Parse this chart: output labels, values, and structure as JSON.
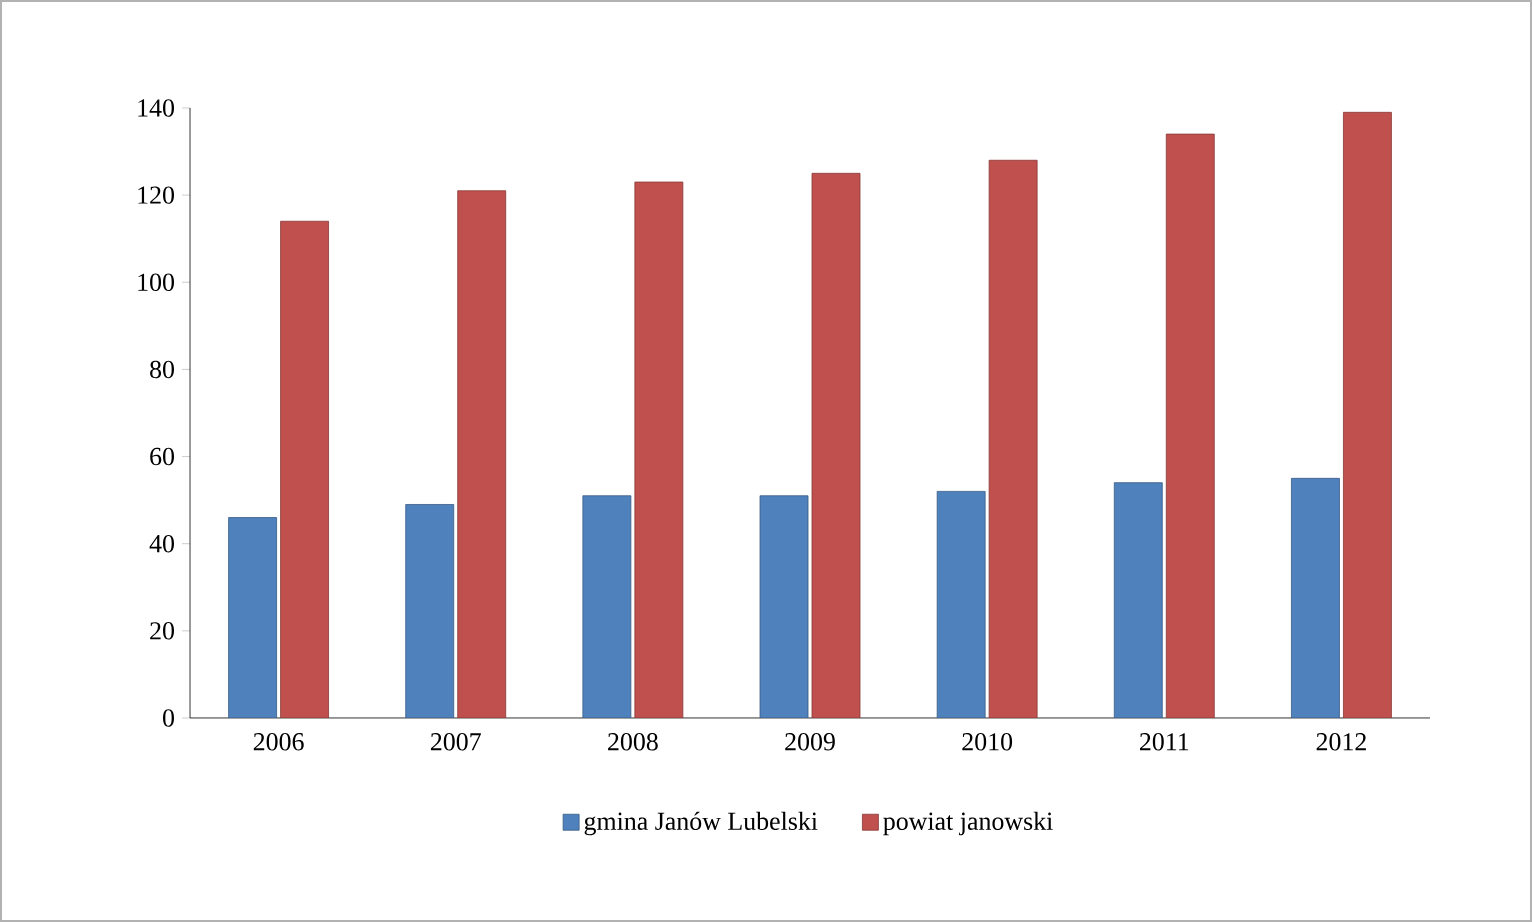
{
  "chart_data": {
    "type": "bar",
    "categories": [
      "2006",
      "2007",
      "2008",
      "2009",
      "2010",
      "2011",
      "2012"
    ],
    "series": [
      {
        "name": "gmina Janów Lubelski",
        "color": "#4f81bd",
        "values": [
          46,
          49,
          51,
          51,
          52,
          54,
          55
        ]
      },
      {
        "name": "powiat janowski",
        "color": "#c0504d",
        "values": [
          114,
          121,
          123,
          125,
          128,
          134,
          139
        ]
      }
    ],
    "ylim": [
      0,
      140
    ],
    "yticks": [
      0,
      20,
      40,
      60,
      80,
      100,
      120,
      140
    ],
    "grid": false,
    "legend": "bottom"
  }
}
